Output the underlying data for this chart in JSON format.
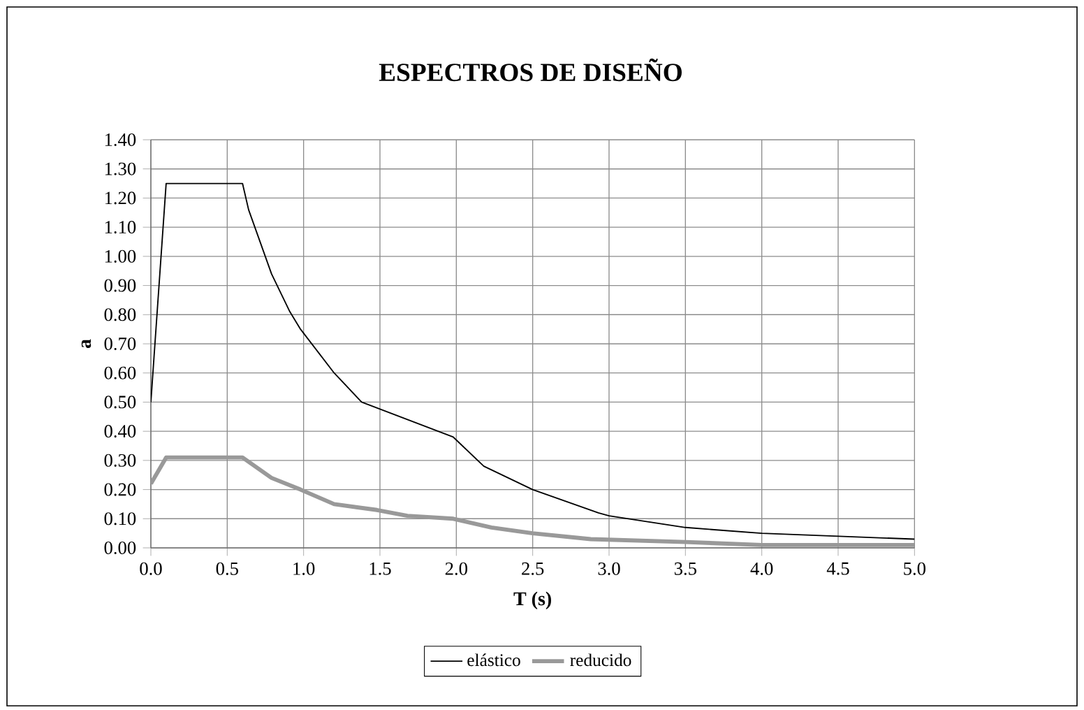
{
  "chart_data": {
    "type": "line",
    "title": "ESPECTROS  DE DISEÑO",
    "xlabel": "T (s)",
    "ylabel": "a",
    "xlim": [
      0,
      5
    ],
    "ylim": [
      0,
      1.4
    ],
    "xticks": [
      {
        "value": 0,
        "label": "0.0"
      },
      {
        "value": 0.5,
        "label": "0.5"
      },
      {
        "value": 1,
        "label": "1.0"
      },
      {
        "value": 1.5,
        "label": "1.5"
      },
      {
        "value": 2,
        "label": "2.0"
      },
      {
        "value": 2.5,
        "label": "2.5"
      },
      {
        "value": 3,
        "label": "3.0"
      },
      {
        "value": 3.5,
        "label": "3.5"
      },
      {
        "value": 4,
        "label": "4.0"
      },
      {
        "value": 4.5,
        "label": "4.5"
      },
      {
        "value": 5,
        "label": "5.0"
      }
    ],
    "yticks": [
      {
        "value": 0,
        "label": "0.00"
      },
      {
        "value": 0.1,
        "label": "0.10"
      },
      {
        "value": 0.2,
        "label": "0.20"
      },
      {
        "value": 0.3,
        "label": "0.30"
      },
      {
        "value": 0.4,
        "label": "0.40"
      },
      {
        "value": 0.5,
        "label": "0.50"
      },
      {
        "value": 0.6,
        "label": "0.60"
      },
      {
        "value": 0.7,
        "label": "0.70"
      },
      {
        "value": 0.8,
        "label": "0.80"
      },
      {
        "value": 0.9,
        "label": "0.90"
      },
      {
        "value": 1,
        "label": "1.00"
      },
      {
        "value": 1.1,
        "label": "1.10"
      },
      {
        "value": 1.2,
        "label": "1.20"
      },
      {
        "value": 1.3,
        "label": "1.30"
      },
      {
        "value": 1.4,
        "label": "1.40"
      }
    ],
    "grid": true,
    "legend": "bottom",
    "marker": "none",
    "line_style": "solid",
    "series": [
      {
        "name": "elástico",
        "color": "#000000",
        "x": [
          0,
          0.1,
          0.6,
          0.64,
          0.79,
          0.91,
          0.98,
          1.2,
          1.38,
          1.68,
          1.98,
          2.18,
          2.5,
          2.93,
          3.0,
          3.5,
          4.0,
          4.5,
          5.0
        ],
        "values": [
          0.5,
          1.25,
          1.25,
          1.16,
          0.94,
          0.81,
          0.75,
          0.6,
          0.5,
          0.44,
          0.38,
          0.28,
          0.2,
          0.12,
          0.11,
          0.07,
          0.05,
          0.04,
          0.03
        ]
      },
      {
        "name": "reducido",
        "color": "#999999",
        "x": [
          0,
          0.1,
          0.6,
          0.79,
          0.98,
          1.2,
          1.48,
          1.68,
          1.98,
          2.23,
          2.5,
          2.88,
          3.5,
          4.0,
          5.0
        ],
        "values": [
          0.22,
          0.31,
          0.31,
          0.24,
          0.2,
          0.15,
          0.13,
          0.11,
          0.1,
          0.07,
          0.05,
          0.03,
          0.02,
          0.01,
          0.01
        ]
      }
    ]
  }
}
